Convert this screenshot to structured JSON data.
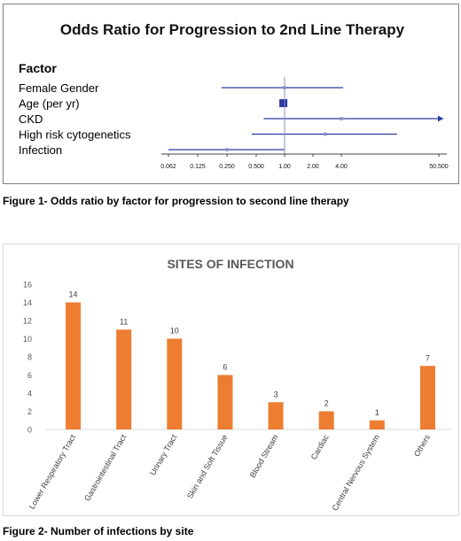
{
  "figure1": {
    "caption": "Figure 1- Odds ratio by factor for progression to second line therapy",
    "chart_data": {
      "type": "forest",
      "title": "Odds Ratio for Progression to 2nd Line Therapy",
      "factor_header": "Factor",
      "x_scale": "log2",
      "x_ticks": [
        "0.062",
        "0.125",
        "0.250",
        "0.500",
        "1.00",
        "2.00",
        "4.00",
        "50.500"
      ],
      "reference_line": 1.0,
      "factors": [
        {
          "label": "Female Gender",
          "or": 1.0,
          "ci_low": 0.22,
          "ci_high": 4.2,
          "arrow": false
        },
        {
          "label": "Age (per yr)",
          "or": 0.97,
          "ci_low": 0.93,
          "ci_high": 1.02,
          "arrow": false
        },
        {
          "label": "CKD",
          "or": 4.0,
          "ci_low": 0.6,
          "ci_high": 50.5,
          "arrow": true
        },
        {
          "label": "High risk cytogenetics",
          "or": 2.7,
          "ci_low": 0.45,
          "ci_high": 17.0,
          "arrow": false
        },
        {
          "label": "Infection",
          "or": 0.25,
          "ci_low": 0.062,
          "ci_high": 1.0,
          "arrow": false
        }
      ],
      "line_color": "#2b3aa0"
    }
  },
  "figure2": {
    "caption": "Figure 2- Number of infections by site",
    "chart_data": {
      "type": "bar",
      "title": "SITES OF INFECTION",
      "categories": [
        "Lower Respiratory Tract",
        "Gastrointestinal Tract",
        "Urinary Tract",
        "Skin and Soft Tissue",
        "Blood Stream",
        "Cardiac",
        "Central Nervous System",
        "Others"
      ],
      "values": [
        14,
        11,
        10,
        6,
        3,
        2,
        1,
        7
      ],
      "ylim": [
        0,
        16
      ],
      "yticks": [
        0,
        2,
        4,
        6,
        8,
        10,
        12,
        14,
        16
      ],
      "grid": false,
      "bar_color": "#ed7d31",
      "title_color": "#595959"
    }
  }
}
